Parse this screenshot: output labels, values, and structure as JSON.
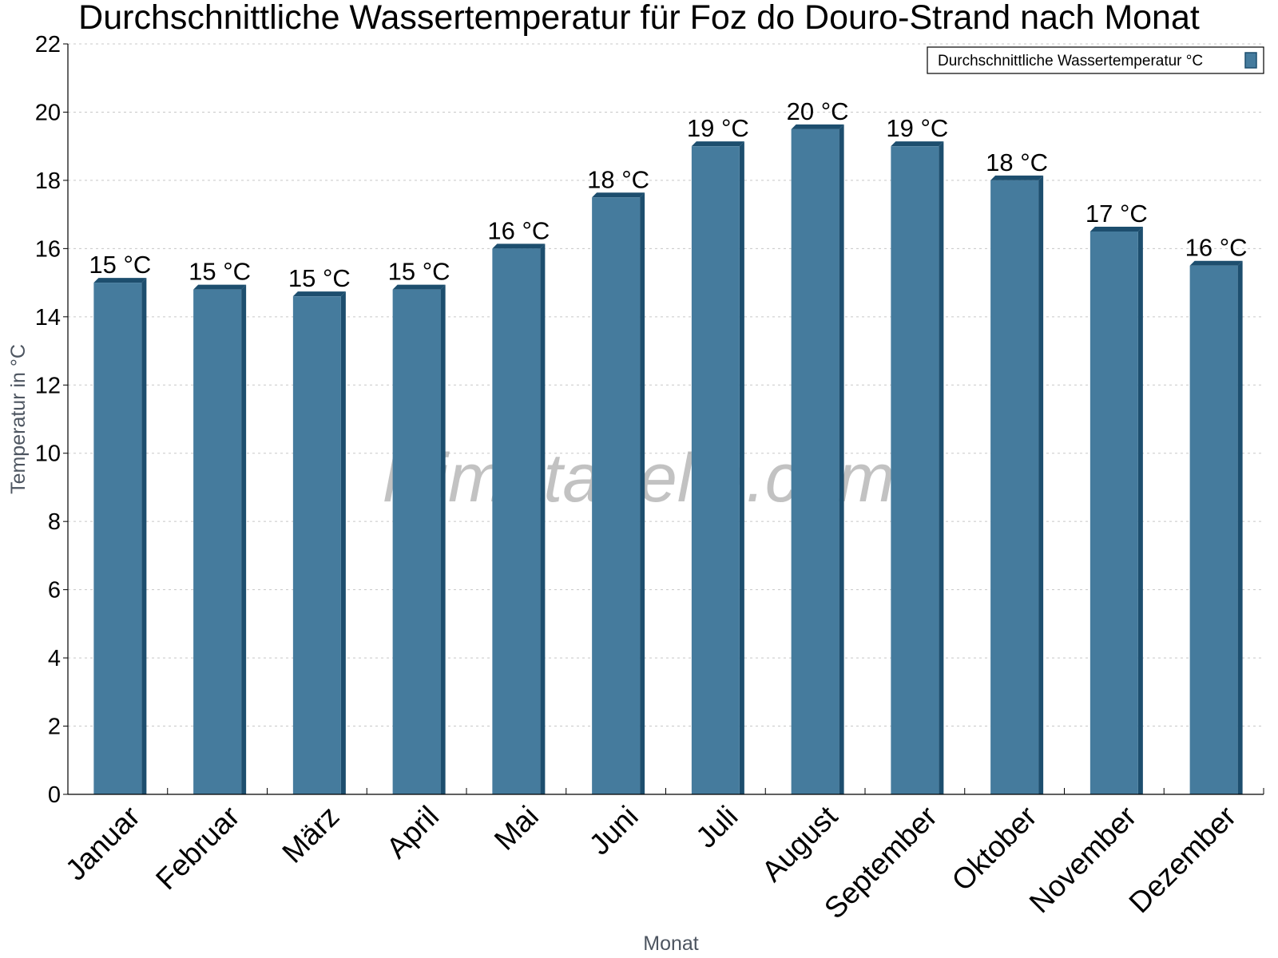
{
  "chart_data": {
    "type": "bar",
    "title": "Durchschnittliche Wassertemperatur für Foz do Douro-Strand nach Monat",
    "xlabel": "Monat",
    "ylabel": "Temperatur in °C",
    "categories": [
      "Januar",
      "Februar",
      "März",
      "April",
      "Mai",
      "Juni",
      "Juli",
      "August",
      "September",
      "Oktober",
      "November",
      "Dezember"
    ],
    "series": [
      {
        "name": "Durchschnittliche Wassertemperatur °C",
        "values": [
          15.0,
          14.8,
          14.6,
          14.8,
          16.0,
          17.5,
          19.0,
          19.5,
          19.0,
          18.0,
          16.5,
          15.5
        ],
        "labels": [
          "15 °C",
          "15 °C",
          "15 °C",
          "15 °C",
          "16 °C",
          "18 °C",
          "19 °C",
          "20 °C",
          "19 °C",
          "18 °C",
          "17 °C",
          "16 °C"
        ],
        "color": "#457b9d",
        "edge_color": "#1d4e6e"
      }
    ],
    "ylim": [
      0,
      22
    ],
    "yticks": [
      0,
      2,
      4,
      6,
      8,
      10,
      12,
      14,
      16,
      18,
      20,
      22
    ],
    "grid": true,
    "legend_position": "top-right"
  },
  "watermark": "klimatabelle.com"
}
